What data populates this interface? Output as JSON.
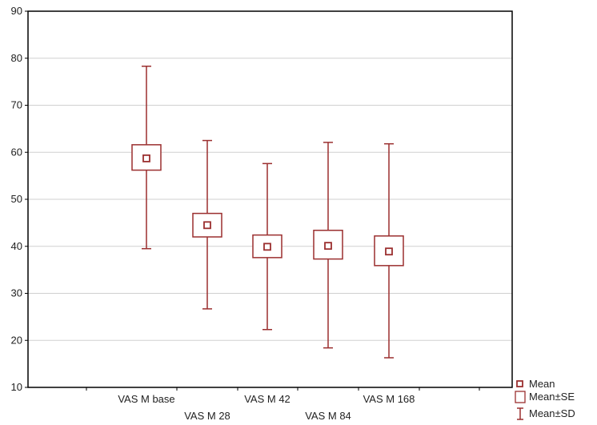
{
  "chart_data": {
    "type": "box",
    "title": "",
    "xlabel": "",
    "ylabel": "",
    "categories": [
      "VAS M base",
      "VAS M 28",
      "VAS M 42",
      "VAS M 84",
      "VAS M 168"
    ],
    "mean": [
      58.7,
      44.5,
      39.9,
      40.1,
      38.9
    ],
    "se_low": [
      56.2,
      42.0,
      37.6,
      37.3,
      35.9
    ],
    "se_high": [
      61.6,
      47.0,
      42.4,
      43.4,
      42.2
    ],
    "sd_low": [
      39.5,
      26.7,
      22.3,
      18.4,
      16.3
    ],
    "sd_high": [
      78.3,
      62.5,
      57.6,
      62.1,
      61.8
    ],
    "ylim": [
      10,
      90
    ],
    "yticks": [
      10,
      20,
      30,
      40,
      50,
      60,
      70,
      80,
      90
    ],
    "grid": true,
    "legend": {
      "placement": "bottom-right outside",
      "items": [
        {
          "label": "Mean",
          "symbol": "small-square"
        },
        {
          "label": "Mean±SE",
          "symbol": "box"
        },
        {
          "label": "Mean±SD",
          "symbol": "whisker"
        }
      ]
    },
    "colors": {
      "marker": "#9b2f2f",
      "box_fill": "#ffffff",
      "grid": "#d0d0d0",
      "axis": "#000000"
    }
  }
}
